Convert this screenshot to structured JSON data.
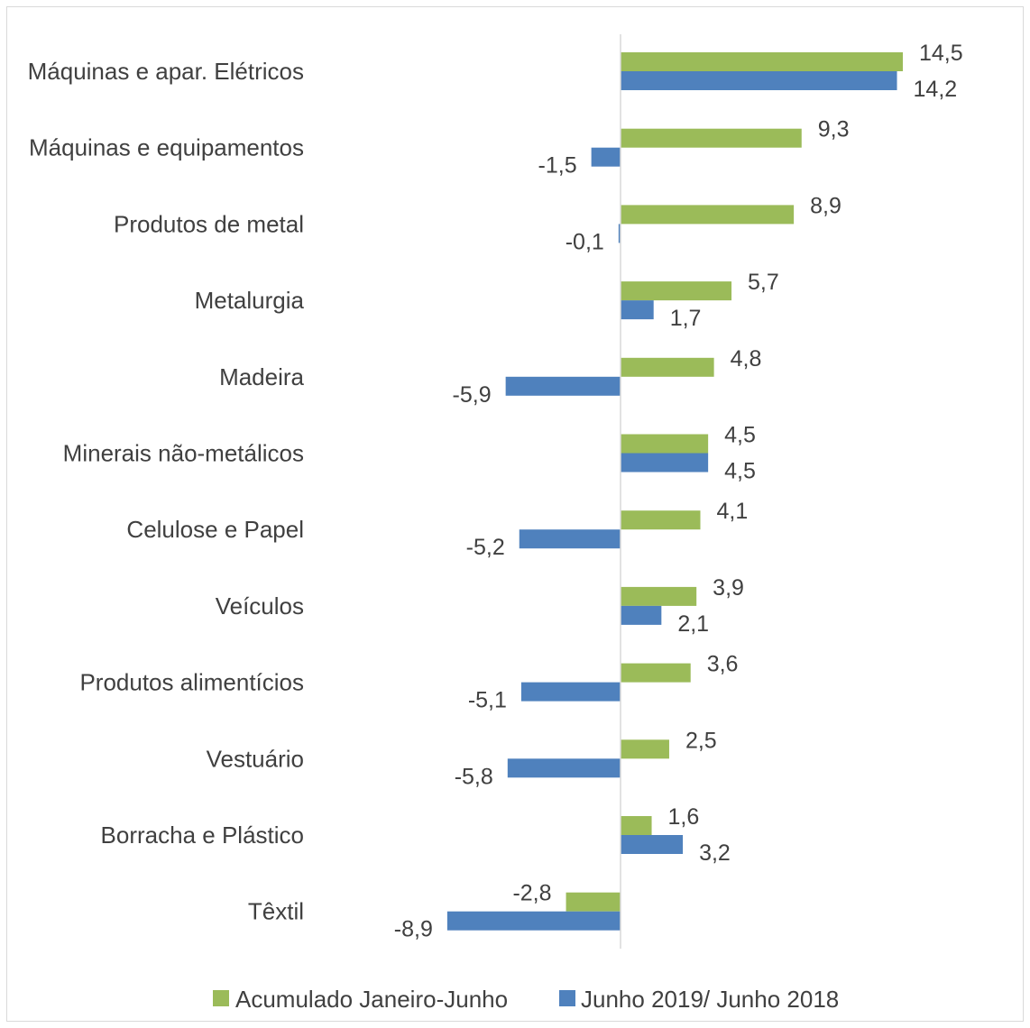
{
  "chart_data": {
    "type": "bar",
    "orientation": "horizontal",
    "categories": [
      "Máquinas e apar. Elétricos",
      "Máquinas e equipamentos",
      "Produtos de metal",
      "Metalurgia",
      "Madeira",
      "Minerais não-metálicos",
      "Celulose e Papel",
      "Veículos",
      "Produtos alimentícios",
      "Vestuário",
      "Borracha e Plástico",
      "Têxtil"
    ],
    "series": [
      {
        "name": "Acumulado Janeiro-Junho",
        "color": "#9bbb59",
        "values": [
          14.5,
          9.3,
          8.9,
          5.7,
          4.8,
          4.5,
          4.1,
          3.9,
          3.6,
          2.5,
          1.6,
          -2.8
        ],
        "labels": [
          "14,5",
          "9,3",
          "8,9",
          "5,7",
          "4,8",
          "4,5",
          "4,1",
          "3,9",
          "3,6",
          "2,5",
          "1,6",
          "-2,8"
        ]
      },
      {
        "name": "Junho 2019/ Junho 2018",
        "color": "#4f81bd",
        "values": [
          14.2,
          -1.5,
          -0.1,
          1.7,
          -5.9,
          4.5,
          -5.2,
          2.1,
          -5.1,
          -5.8,
          3.2,
          -8.9
        ],
        "labels": [
          "14,2",
          "-1,5",
          "-0,1",
          "1,7",
          "-5,9",
          "4,5",
          "-5,2",
          "2,1",
          "-5,1",
          "-5,8",
          "3,2",
          "-8,9"
        ]
      }
    ],
    "xlim": [
      -8.9,
      14.5
    ],
    "grid": false,
    "legend_position": "bottom",
    "title": "",
    "xlabel": "",
    "ylabel": ""
  }
}
